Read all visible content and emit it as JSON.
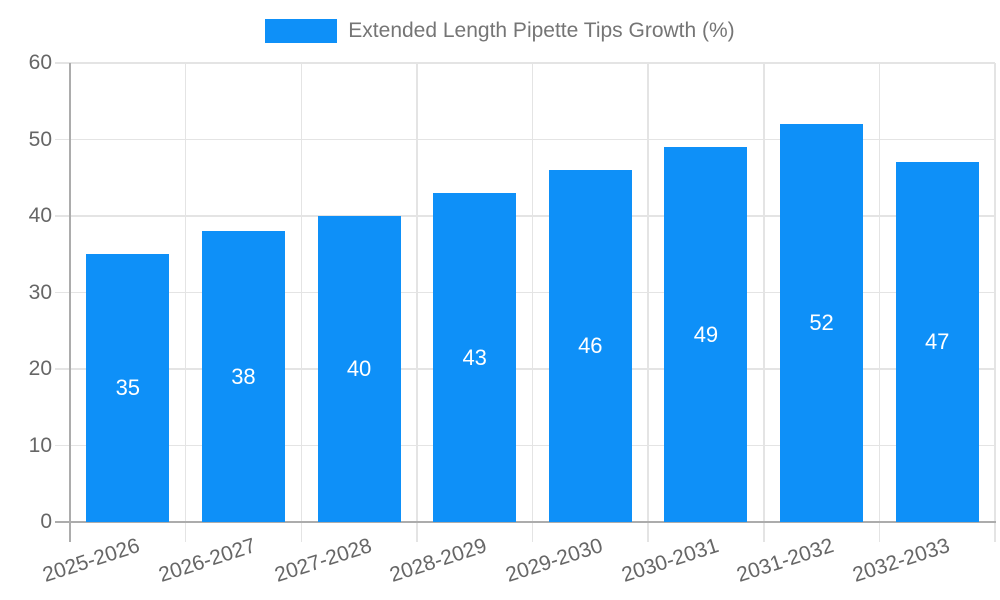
{
  "chart_data": {
    "type": "bar",
    "legend": "Extended Length Pipette Tips Growth (%)",
    "legend_position": "top-center",
    "categories": [
      "2025-2026",
      "2026-2027",
      "2027-2028",
      "2028-2029",
      "2029-2030",
      "2030-2031",
      "2031-2032",
      "2032-2033"
    ],
    "values": [
      35,
      38,
      40,
      43,
      46,
      49,
      52,
      47
    ],
    "bar_value_labels": [
      "35",
      "38",
      "40",
      "43",
      "46",
      "49",
      "52",
      "47"
    ],
    "ylim": [
      0,
      60
    ],
    "yticks": [
      0,
      10,
      20,
      30,
      40,
      50,
      60
    ],
    "grid": true,
    "xlabel": "",
    "ylabel": "",
    "colors": {
      "bar": "#0E90F8",
      "bar_value_text": "#FFFFFF",
      "grid": "#E4E4E4",
      "axis": "#ACACAC",
      "tick_text": "#666666",
      "legend_text": "#757575",
      "background": "#FFFFFF"
    }
  }
}
